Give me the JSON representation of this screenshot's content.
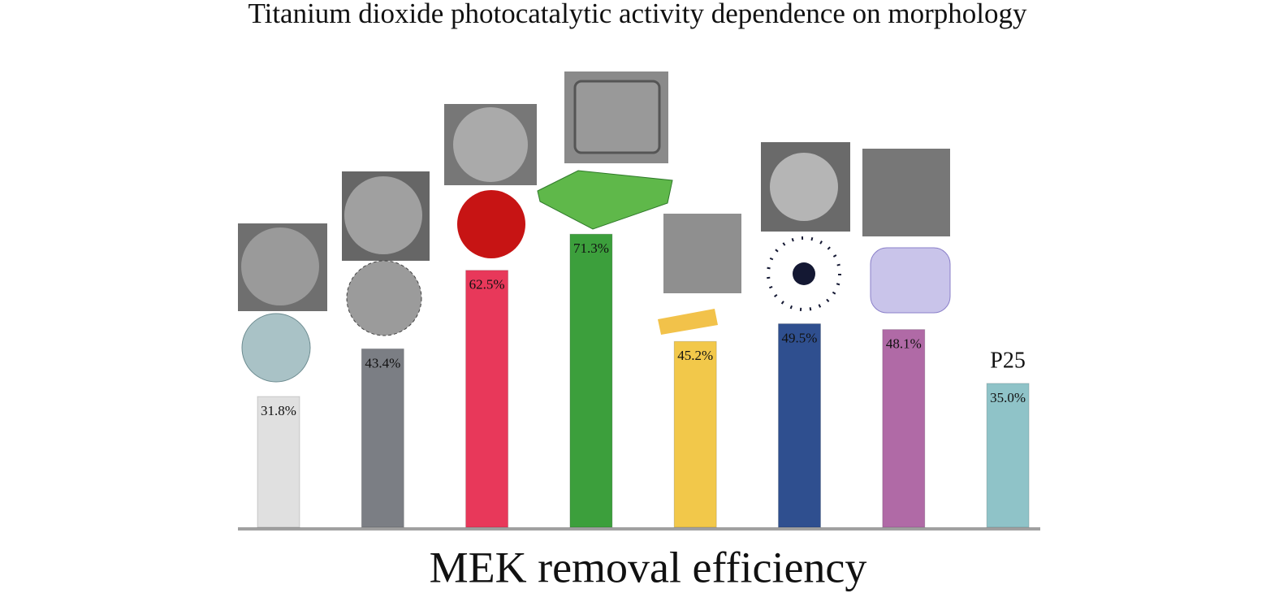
{
  "chart_data": {
    "type": "bar",
    "title": "Titanium dioxide photocatalytic activity dependence on morphology",
    "xlabel": "MEK removal efficiency",
    "categories": [
      null,
      null,
      null,
      null,
      null,
      null,
      null,
      "P25"
    ],
    "values": [
      31.8,
      43.4,
      62.5,
      71.3,
      45.2,
      49.5,
      48.1,
      35.0
    ],
    "value_labels": [
      "31.8%",
      "43.4%",
      "62.5%",
      "71.3%",
      "45.2%",
      "49.5%",
      "48.1%",
      "35.0%"
    ],
    "colors": [
      "#e0e0e0",
      "#7b7e84",
      "#e8385a",
      "#3c9f3c",
      "#f2c84a",
      "#2f4f8f",
      "#b06aa6",
      "#8fc3c8"
    ],
    "ylim": [
      0,
      100
    ]
  }
}
